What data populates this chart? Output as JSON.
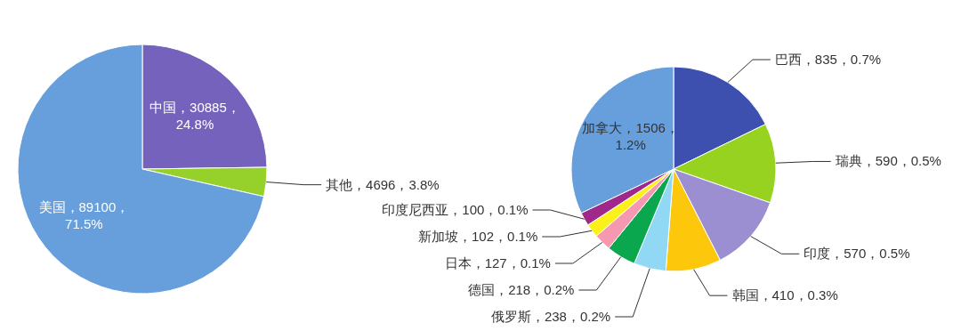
{
  "chart_data": [
    {
      "type": "pie",
      "categories": [
        "中国，30885，24.8%",
        "其他，4696，3.8%",
        "美国，89100，71.5%"
      ],
      "values": [
        30885,
        4696,
        89100
      ],
      "colors": [
        "#7562bd",
        "#96d02a",
        "#669fdc"
      ]
    },
    {
      "type": "pie",
      "categories": [
        "巴西，835，0.7%",
        "瑞典，590，0.5%",
        "印度，570，0.5%",
        "韩国，410，0.3%",
        "俄罗斯，238，0.2%",
        "德国，218，0.2%",
        "日本，127，0.1%",
        "新加坡，102，0.1%",
        "印度尼西亚，100，0.1%",
        "加拿大，1506，1.2%"
      ],
      "values": [
        835,
        590,
        570,
        410,
        238,
        218,
        127,
        102,
        100,
        1506
      ],
      "colors": [
        "#3d50b0",
        "#96d21f",
        "#9b8fd1",
        "#fdc70b",
        "#91d8f5",
        "#0aa74f",
        "#f598b0",
        "#fcf01a",
        "#a0288a",
        "#669fdc"
      ]
    }
  ]
}
